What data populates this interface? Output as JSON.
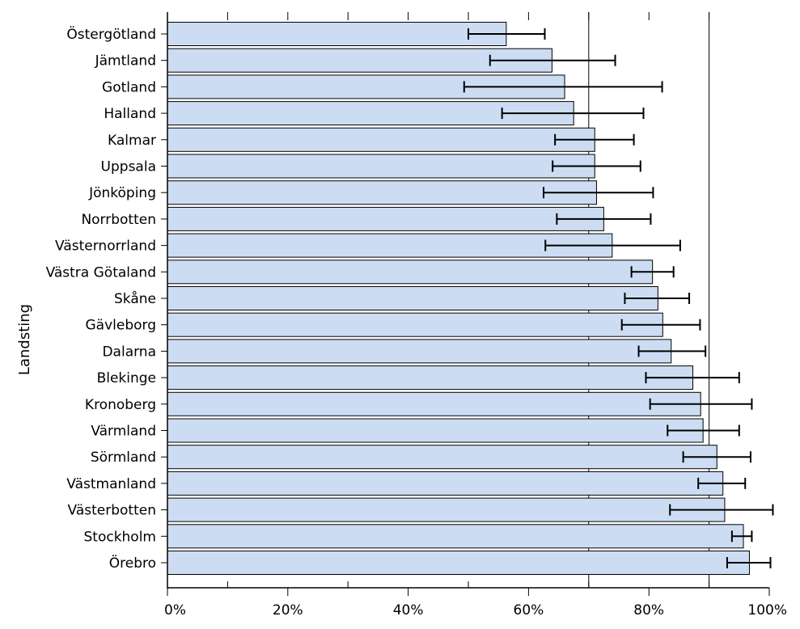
{
  "chart_data": {
    "type": "bar",
    "orientation": "horizontal",
    "title": "",
    "xlabel": "",
    "ylabel": "Landsting",
    "xlim": [
      0,
      100
    ],
    "x_ticks": [
      "0%",
      "20%",
      "40%",
      "60%",
      "80%",
      "100%"
    ],
    "x_tick_values": [
      0,
      20,
      40,
      60,
      80,
      100
    ],
    "grid": {
      "vertical_lines_at": [
        70,
        90
      ]
    },
    "bar_color": "#ccddf3",
    "bar_edge_color": "#000000",
    "error_bar_color": "#000000",
    "categories": [
      "Östergötland",
      "Jämtland",
      "Gotland",
      "Halland",
      "Kalmar",
      "Uppsala",
      "Jönköping",
      "Norrbotten",
      "Västernorrland",
      "Västra Götaland",
      "Skåne",
      "Gävleborg",
      "Dalarna",
      "Blekinge",
      "Kronoberg",
      "Värmland",
      "Sörmland",
      "Västmanland",
      "Västerbotten",
      "Stockholm",
      "Örebro"
    ],
    "values": [
      56.3,
      63.9,
      66.0,
      67.5,
      71.0,
      71.0,
      71.3,
      72.5,
      73.9,
      80.6,
      81.5,
      82.3,
      83.7,
      87.3,
      88.6,
      89.0,
      91.3,
      92.3,
      92.6,
      95.7,
      96.7
    ],
    "error_low": [
      50.0,
      53.6,
      49.3,
      55.6,
      64.4,
      64.0,
      62.5,
      64.7,
      62.8,
      77.1,
      76.0,
      75.5,
      78.3,
      79.5,
      80.2,
      83.1,
      85.7,
      88.2,
      83.5,
      93.8,
      93.0
    ],
    "error_high": [
      62.7,
      74.4,
      82.2,
      79.1,
      77.5,
      78.6,
      80.7,
      80.3,
      85.2,
      84.1,
      86.7,
      88.5,
      89.4,
      95.0,
      97.1,
      95.0,
      96.9,
      96.0,
      100.6,
      97.1,
      100.2
    ]
  }
}
